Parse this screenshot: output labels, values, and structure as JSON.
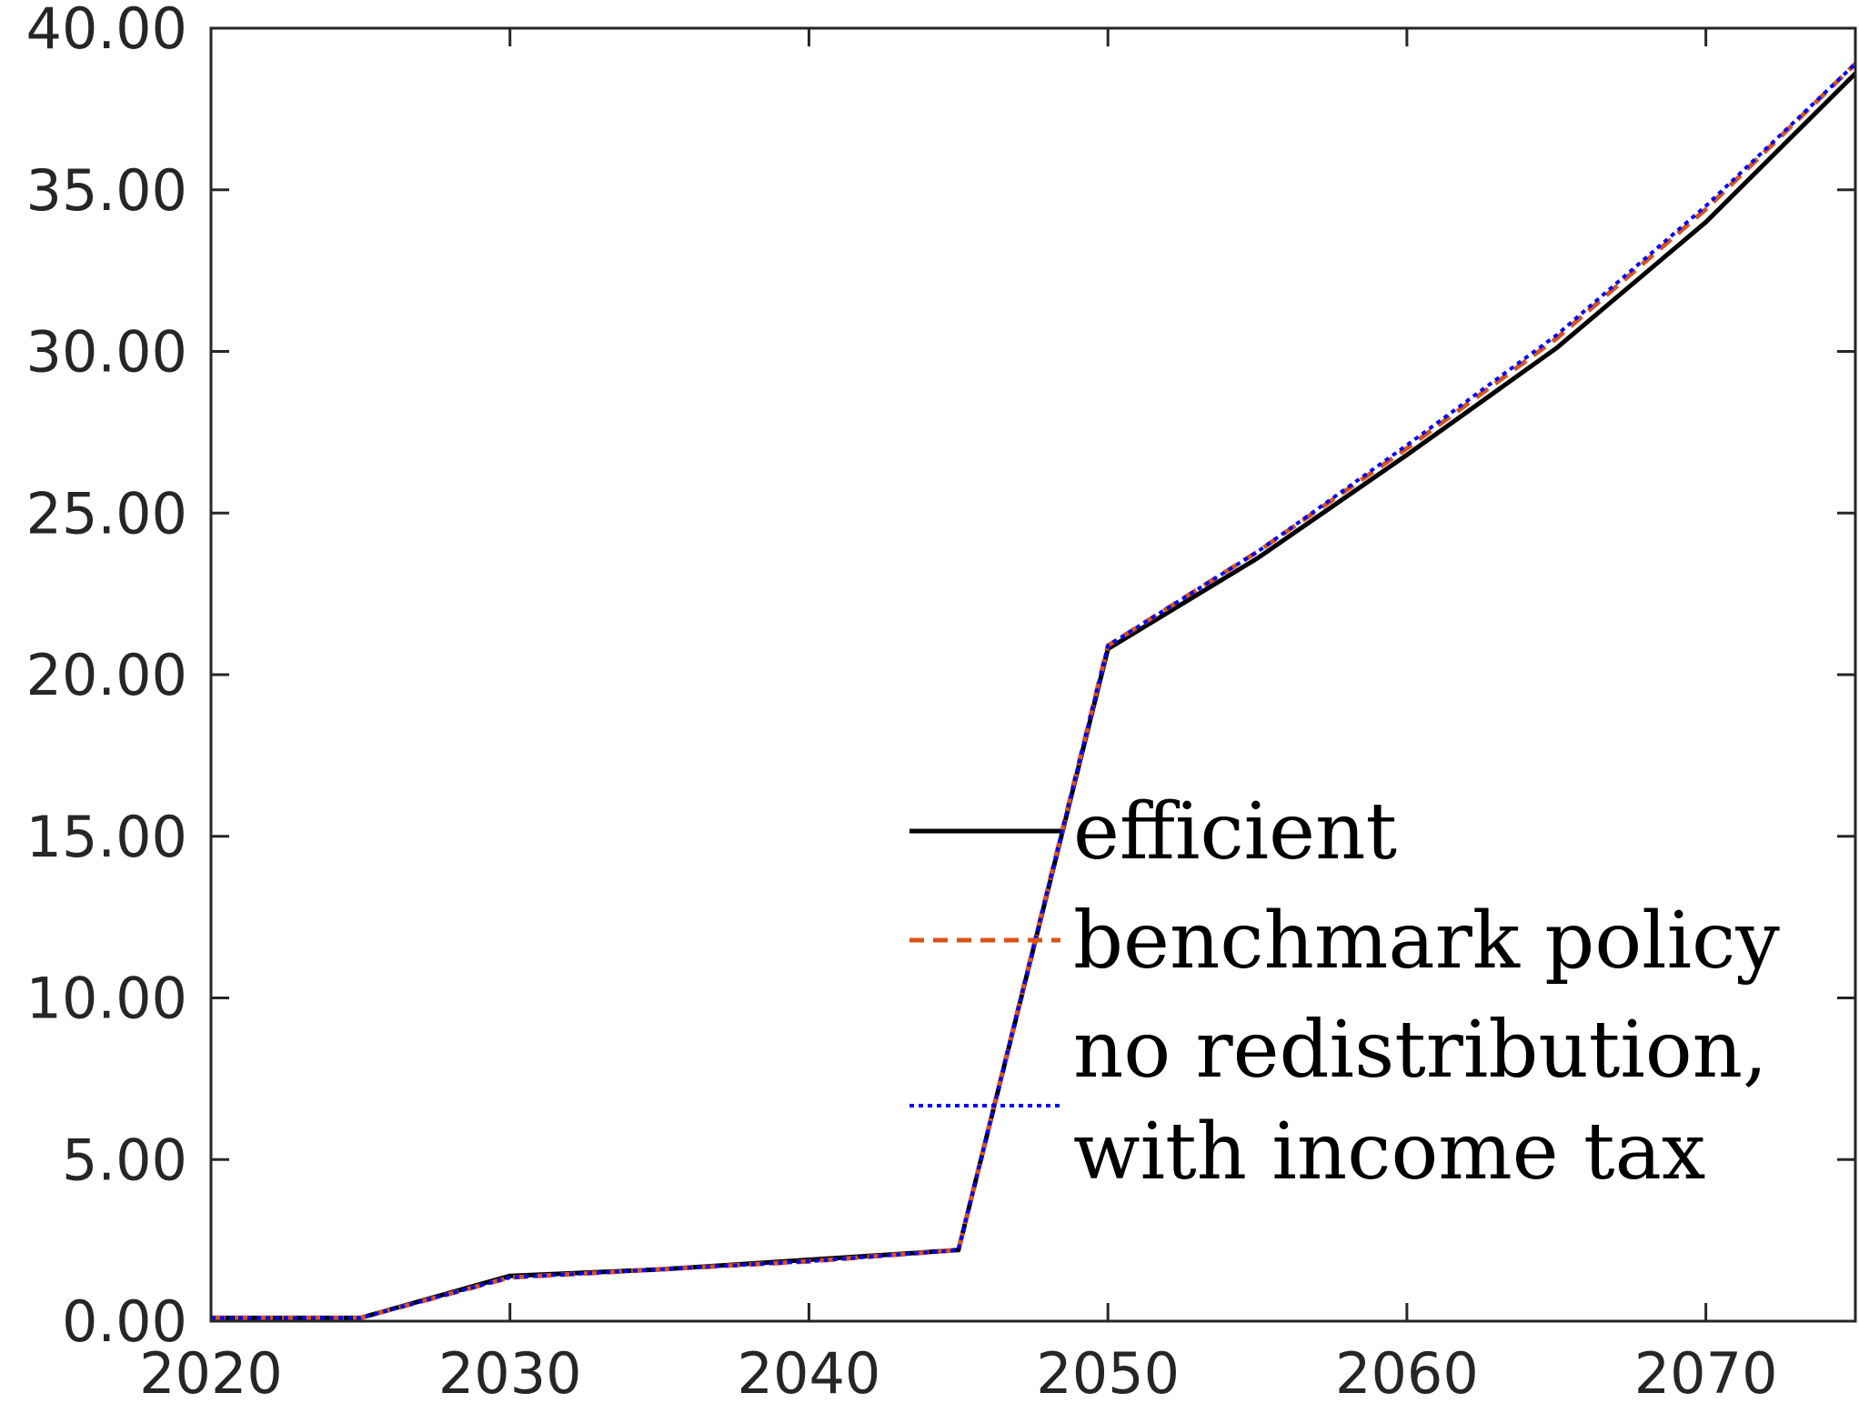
{
  "chart_data": {
    "type": "line",
    "title": "",
    "xlabel": "",
    "ylabel": "",
    "x": [
      2020,
      2025,
      2030,
      2035,
      2040,
      2045,
      2050,
      2055,
      2060,
      2065,
      2070,
      2075
    ],
    "xlim": [
      2020,
      2075
    ],
    "ylim": [
      0,
      40
    ],
    "x_ticks": [
      2020,
      2030,
      2040,
      2050,
      2060,
      2070
    ],
    "x_tick_labels": [
      "2020",
      "2030",
      "2040",
      "2050",
      "2060",
      "2070"
    ],
    "y_ticks": [
      0,
      5,
      10,
      15,
      20,
      25,
      30,
      35,
      40
    ],
    "y_tick_labels": [
      "0.00",
      "5.00",
      "10.00",
      "15.00",
      "20.00",
      "25.00",
      "30.00",
      "35.00",
      "40.00"
    ],
    "grid": false,
    "legend_position": "lower-right",
    "series": [
      {
        "name": "efficient",
        "color": "#000000",
        "style": "solid",
        "values": [
          0.1,
          0.1,
          1.4,
          1.6,
          1.9,
          2.2,
          20.8,
          23.6,
          26.8,
          30.1,
          34.0,
          38.6
        ]
      },
      {
        "name": "benchmark policy",
        "color": "#D95319",
        "style": "dashed",
        "values": [
          0.1,
          0.1,
          1.35,
          1.6,
          1.85,
          2.2,
          20.9,
          23.8,
          27.0,
          30.4,
          34.4,
          38.9
        ]
      },
      {
        "name": "no redistribution, with income tax",
        "legend_lines": [
          "no redistribution,",
          "with income tax"
        ],
        "color": "#0000FF",
        "style": "dotted",
        "values": [
          0.1,
          0.1,
          1.35,
          1.6,
          1.85,
          2.2,
          20.9,
          23.8,
          27.1,
          30.5,
          34.5,
          38.9
        ]
      }
    ]
  }
}
